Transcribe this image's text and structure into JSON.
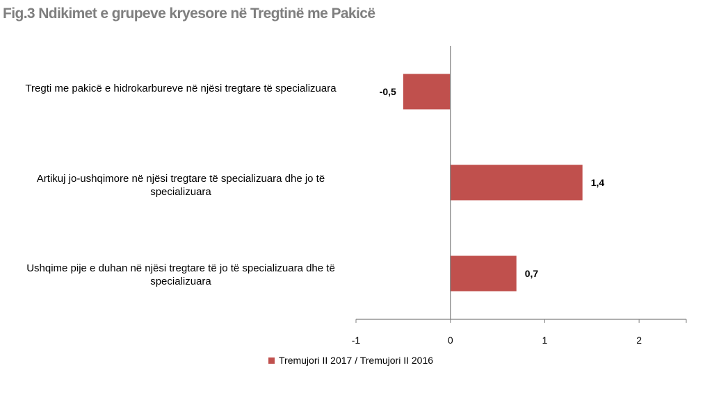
{
  "title": "Fig.3 Ndikimet e grupeve kryesore në Tregtinë me Pakicë",
  "chart_data": {
    "type": "bar",
    "orientation": "horizontal",
    "categories": [
      "Tregti me pakicë e hidrokarbureve në njësi tregtare të specializuara",
      "Artikuj jo-ushqimore në njësi tregtare të specializuara dhe jo të specializuara",
      "Ushqime pije e duhan në njësi tregtare të jo të specializuara dhe të specializuara"
    ],
    "series": [
      {
        "name": "Tremujori II 2017 / Tremujori II 2016",
        "values": [
          -0.5,
          1.4,
          0.7
        ],
        "value_labels": [
          "-0,5",
          "1,4",
          "0,7"
        ],
        "color": "#c0504d"
      }
    ],
    "xlim": [
      -1,
      2.5
    ],
    "xticks": [
      -1,
      0,
      1,
      2
    ],
    "xtick_labels": [
      "-1",
      "0",
      "1",
      "2"
    ],
    "grid": false,
    "legend_position": "bottom"
  }
}
